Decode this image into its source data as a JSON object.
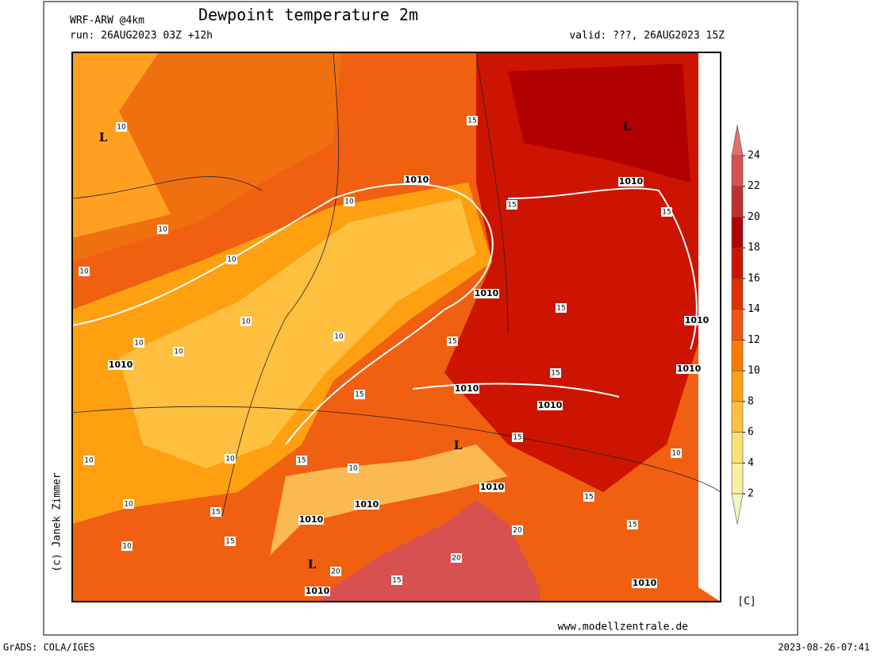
{
  "header": {
    "model": "WRF-ARW @4km",
    "title": "Dewpoint temperature 2m",
    "run": "run: 26AUG2023 03Z +12h",
    "valid": "valid: ???, 26AUG2023 15Z"
  },
  "colorbar": {
    "levels": [
      2,
      4,
      6,
      8,
      10,
      12,
      14,
      16,
      18,
      20,
      22,
      24
    ],
    "colors": [
      "#f0f8c0",
      "#f8f0a0",
      "#ffe070",
      "#ffc040",
      "#ffa010",
      "#ff7a00",
      "#f05410",
      "#e03000",
      "#cc1400",
      "#b00000",
      "#c03030",
      "#d85050",
      "#e07070"
    ],
    "unit": "[C]"
  },
  "map": {
    "contour_labels": [
      "L",
      "L",
      "L",
      "L",
      "1010",
      "1010",
      "1010",
      "1010",
      "1010",
      "1010",
      "1010",
      "1010",
      "1010",
      "1010",
      "1010",
      "1010",
      "1010",
      "10",
      "10",
      "10",
      "10",
      "10",
      "10",
      "10",
      "10",
      "10",
      "10",
      "10",
      "10",
      "10",
      "10",
      "10",
      "15",
      "15",
      "15",
      "15",
      "15",
      "15",
      "15",
      "15",
      "15",
      "15",
      "15",
      "15",
      "15",
      "15",
      "20",
      "20",
      "20"
    ]
  },
  "footer": {
    "copyright": "(c) Janek Zimmer",
    "website": "www.modellzentrale.de",
    "software": "GrADS: COLA/IGES",
    "timestamp": "2023-08-26-07:41"
  }
}
